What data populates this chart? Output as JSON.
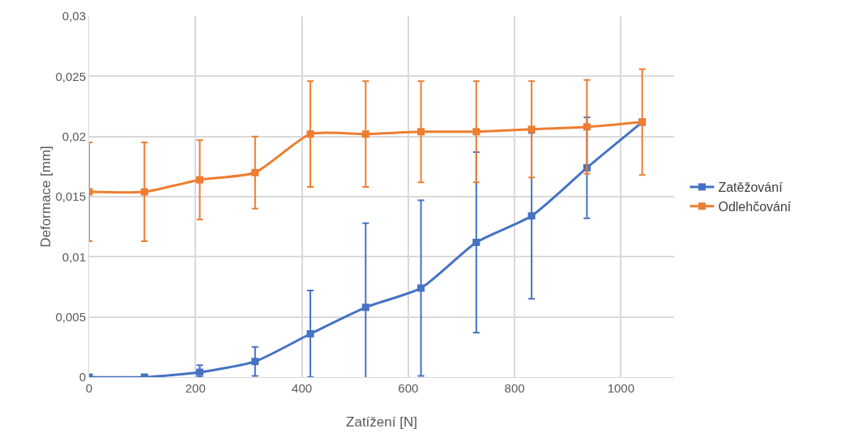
{
  "chart_data": {
    "type": "line",
    "xlabel": "Zatížení [N]",
    "ylabel": "Deformace [mm]",
    "x": [
      0,
      104,
      208,
      312,
      416,
      520,
      624,
      728,
      832,
      936,
      1040
    ],
    "series": [
      {
        "name": "Zatěžování",
        "color": "#4472c4",
        "values": [
          0,
          0,
          0.0004,
          0.0013,
          0.0036,
          0.0058,
          0.0074,
          0.0112,
          0.0134,
          0.0174,
          0.0212
        ],
        "errors": [
          null,
          null,
          [
            0,
            0.001
          ],
          0.0012,
          0.0036,
          0.007,
          0.0073,
          0.0075,
          0.0069,
          0.0042,
          null
        ]
      },
      {
        "name": "Odlehčování",
        "color": "#ed7d31",
        "values": [
          0.0154,
          0.0154,
          0.0164,
          0.017,
          0.0202,
          0.0202,
          0.0204,
          0.0204,
          0.0206,
          0.0208,
          0.0212
        ],
        "errors": [
          0.0041,
          0.0041,
          0.0033,
          0.003,
          0.0044,
          0.0044,
          0.0042,
          0.0042,
          0.004,
          0.0039,
          0.0044
        ]
      }
    ],
    "xlim": [
      0,
      1100
    ],
    "xticks": [
      0,
      200,
      400,
      600,
      800,
      1000
    ],
    "ylim": [
      0,
      0.03
    ],
    "yticks": [
      0,
      {
        "value": 0.005,
        "label": "0,005"
      },
      {
        "value": 0.01,
        "label": "0,01"
      },
      {
        "value": 0.015,
        "label": "0,015"
      },
      {
        "value": 0.02,
        "label": "0,02"
      },
      {
        "value": 0.025,
        "label": "0,025"
      },
      {
        "value": 0.03,
        "label": "0,03"
      }
    ],
    "grid": true,
    "legend": "right",
    "marker": "square",
    "line_style": "solid"
  }
}
